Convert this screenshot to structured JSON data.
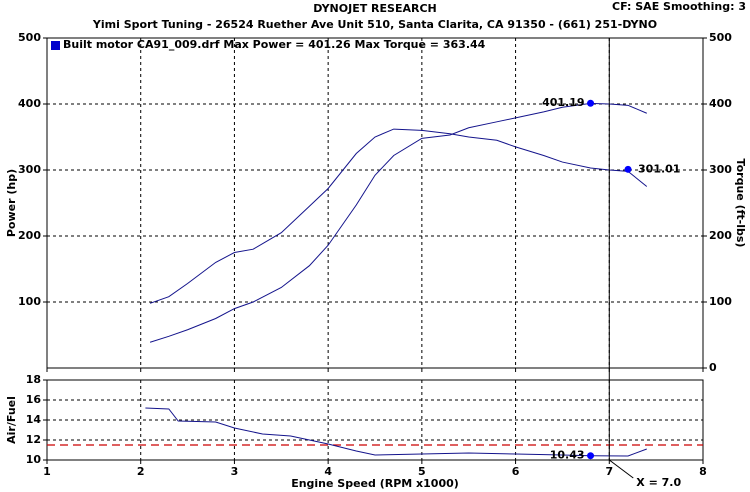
{
  "chart_data": [
    {
      "type": "line",
      "title": "DYNOJET RESEARCH",
      "corner_note": "CF: SAE  Smoothing: 3",
      "subtitle": "Yimi Sport Tuning - 26524 Ruether Ave Unit 510, Santa Clarita, CA 91350 - (661) 251-DYNO",
      "legend_label": "Built motor CA91_009.drf Max Power = 401.26     Max Torque = 363.44",
      "legend_color": "#0000cc",
      "ylabel": "Power (hp)",
      "y2label": "Torque (ft-lbs)",
      "xlim": [
        1,
        8
      ],
      "xticks": [
        1,
        2,
        3,
        4,
        5,
        6,
        7,
        8
      ],
      "ylim": [
        0,
        500
      ],
      "yticks": [
        100,
        200,
        300,
        400,
        500
      ],
      "y2lim": [
        0,
        500
      ],
      "y2ticks": [
        0,
        100,
        200,
        300,
        400,
        500
      ],
      "grid": true,
      "x": [
        2.1,
        2.3,
        2.5,
        2.8,
        3.0,
        3.2,
        3.5,
        3.8,
        4.0,
        4.3,
        4.5,
        4.7,
        5.0,
        5.3,
        5.5,
        5.8,
        6.0,
        6.3,
        6.5,
        6.8,
        7.0,
        7.2,
        7.4
      ],
      "series": [
        {
          "color": "#14148c",
          "values": [
            39,
            48,
            58,
            75,
            90,
            100,
            122,
            155,
            186,
            247,
            292,
            322,
            348,
            353,
            364,
            373,
            379,
            388,
            395,
            401,
            400,
            398,
            386
          ]
        },
        {
          "color": "#14148c",
          "axis": "y2",
          "values": [
            98,
            108,
            128,
            160,
            175,
            180,
            205,
            245,
            272,
            325,
            350,
            362,
            360,
            355,
            350,
            345,
            335,
            322,
            312,
            303,
            300,
            298,
            275
          ]
        }
      ],
      "markers": [
        {
          "x": 6.8,
          "value": 401.19,
          "color": "#0000ff"
        },
        {
          "x": 7.2,
          "value": 301.01,
          "color": "#0000ff",
          "axis": "y2"
        }
      ]
    },
    {
      "type": "line",
      "ylabel": "Air/Fuel",
      "xlabel": "Engine Speed (RPM x1000)",
      "xlim": [
        1,
        8
      ],
      "xticks": [
        1,
        2,
        3,
        4,
        5,
        6,
        7,
        8
      ],
      "ylim": [
        10,
        18
      ],
      "yticks": [
        10,
        12,
        14,
        16,
        18
      ],
      "grid": true,
      "x": [
        2.05,
        2.3,
        2.4,
        2.8,
        3.0,
        3.3,
        3.6,
        4.0,
        4.3,
        4.5,
        5.0,
        5.5,
        6.0,
        6.5,
        6.8,
        7.2,
        7.4
      ],
      "series": [
        {
          "color": "#14148c",
          "values": [
            15.2,
            15.1,
            13.9,
            13.8,
            13.2,
            12.6,
            12.4,
            11.6,
            10.9,
            10.5,
            10.6,
            10.7,
            10.6,
            10.5,
            10.43,
            10.4,
            11.1
          ]
        }
      ],
      "reference_line": {
        "value": 11.5,
        "color": "#cc0000"
      },
      "markers": [
        {
          "x": 6.8,
          "value": 10.43,
          "color": "#0000ff"
        }
      ],
      "cursor": {
        "x": 7,
        "label": "X = 7.0"
      }
    }
  ]
}
